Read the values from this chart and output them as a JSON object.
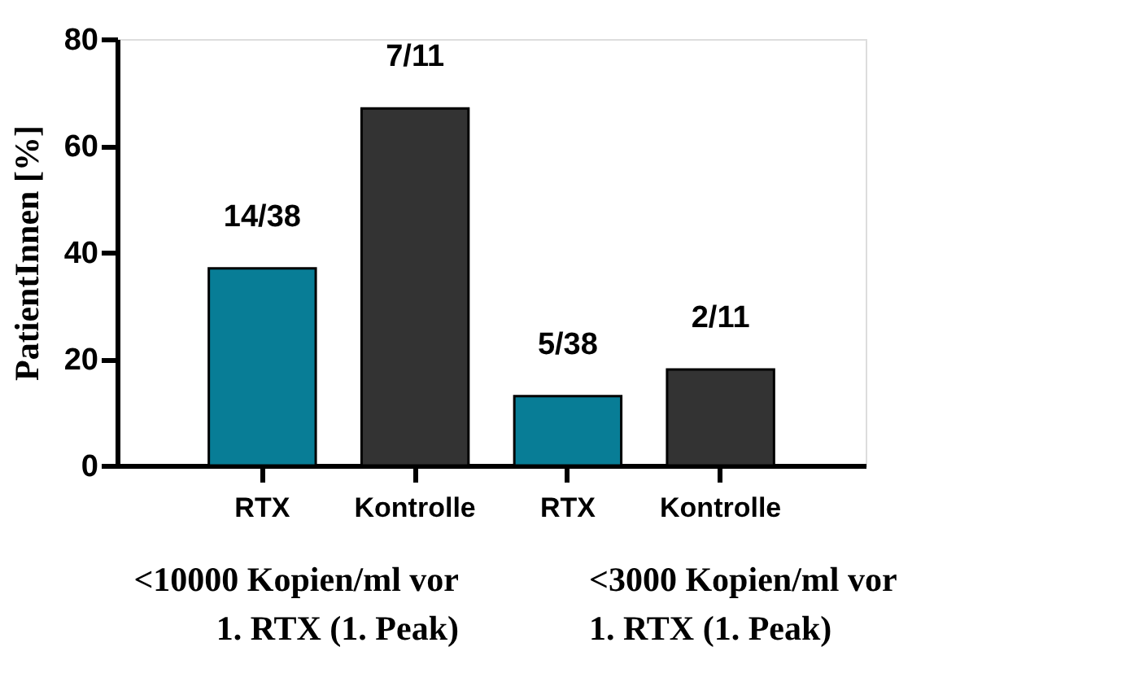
{
  "chart_data": {
    "type": "bar",
    "ylabel": "PatientInnen [%]",
    "categories": [
      "RTX",
      "Kontrolle",
      "RTX",
      "Kontrolle"
    ],
    "values": [
      37,
      67,
      13,
      18
    ],
    "colors": [
      "#087d96",
      "#333333",
      "#087d96",
      "#333333"
    ],
    "value_labels": [
      "14/38",
      "7/11",
      "5/38",
      "2/11"
    ],
    "ylim": [
      0,
      80
    ],
    "yticks": [
      0,
      20,
      40,
      60,
      80
    ],
    "grid": false,
    "annotations": [
      "<10000 Kopien/ml vor\n1. RTX (1. Peak)",
      "<3000 Kopien/ml vor\n1. RTX (1. Peak)"
    ]
  }
}
